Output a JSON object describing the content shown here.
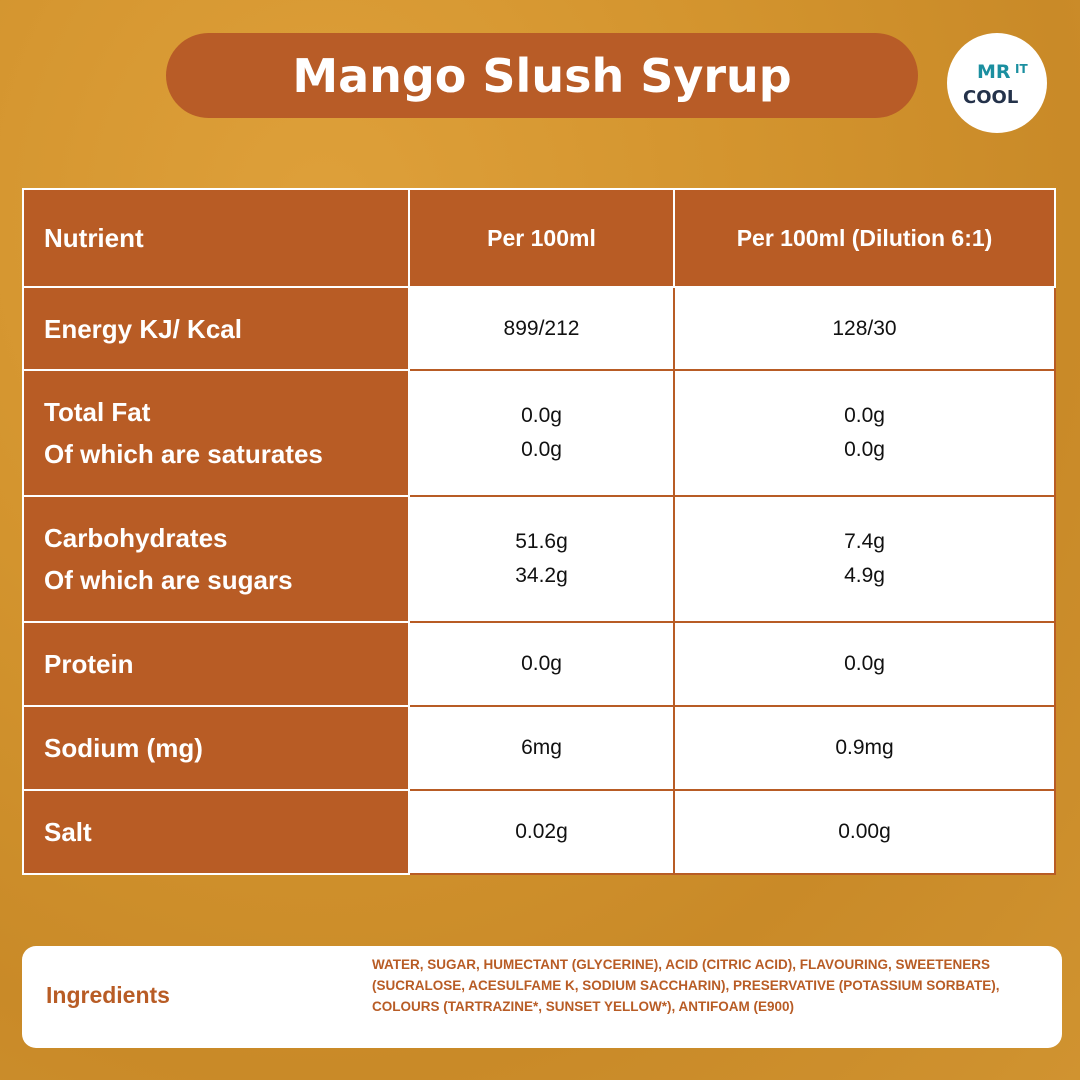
{
  "title": "Mango Slush Syrup",
  "logo": {
    "text": "MR COOL IT",
    "colors": {
      "mr_it": "#1b8fa0",
      "cool": "#24324a"
    }
  },
  "colors": {
    "brand": "#b85c25",
    "background": "#d3942e"
  },
  "table": {
    "headers": [
      "Nutrient",
      "Per 100ml",
      "Per 100ml (Dilution 6:1)"
    ],
    "rows": [
      {
        "label": [
          "Energy KJ/ Kcal"
        ],
        "per100": [
          "899/212"
        ],
        "diluted": [
          "128/30"
        ]
      },
      {
        "label": [
          "Total Fat",
          "Of which are saturates"
        ],
        "per100": [
          "0.0g",
          "0.0g"
        ],
        "diluted": [
          "0.0g",
          "0.0g"
        ]
      },
      {
        "label": [
          "Carbohydrates",
          "Of which are sugars"
        ],
        "per100": [
          "51.6g",
          "34.2g"
        ],
        "diluted": [
          "7.4g",
          "4.9g"
        ]
      },
      {
        "label": [
          "Protein"
        ],
        "per100": [
          "0.0g"
        ],
        "diluted": [
          "0.0g"
        ]
      },
      {
        "label": [
          "Sodium (mg)"
        ],
        "per100": [
          "6mg"
        ],
        "diluted": [
          "0.9mg"
        ]
      },
      {
        "label": [
          "Salt"
        ],
        "per100": [
          "0.02g"
        ],
        "diluted": [
          "0.00g"
        ]
      }
    ]
  },
  "ingredients": {
    "label": "Ingredients",
    "text": "WATER, SUGAR, HUMECTANT (GLYCERINE), ACID (CITRIC ACID), FLAVOURING, SWEETENERS (SUCRALOSE, ACESULFAME K, SODIUM SACCHARIN), PRESERVATIVE (POTASSIUM SORBATE), COLOURS (TARTRAZINE*, SUNSET YELLOW*), ANTIFOAM (E900)"
  }
}
